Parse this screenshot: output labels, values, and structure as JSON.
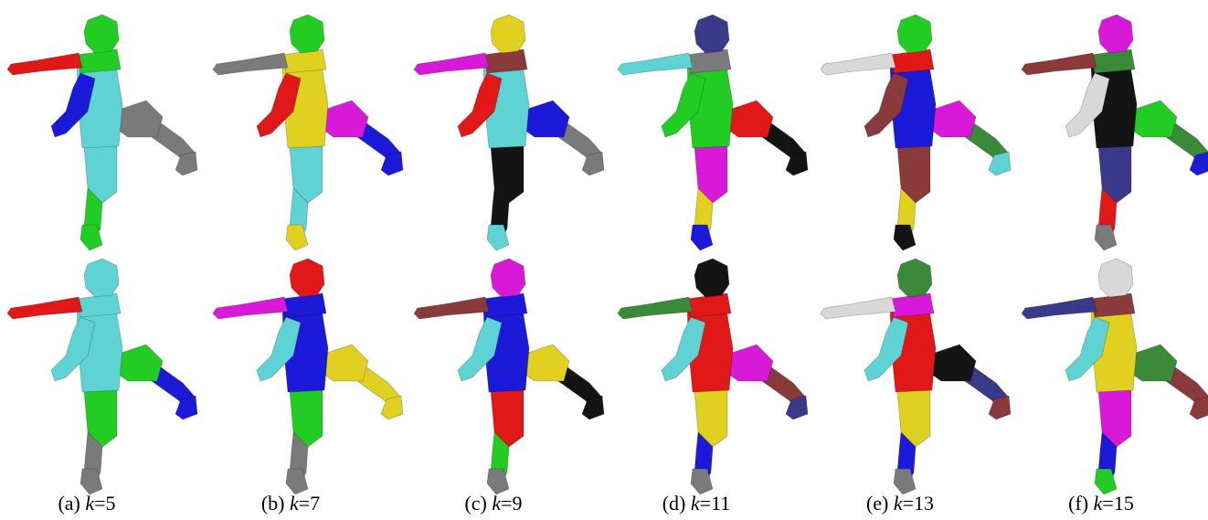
{
  "figure": {
    "captions": [
      {
        "label": "(a)",
        "var": "k",
        "value": "=5"
      },
      {
        "label": "(b)",
        "var": "k",
        "value": "=7"
      },
      {
        "label": "(c)",
        "var": "k",
        "value": "=9"
      },
      {
        "label": "(d)",
        "var": "k",
        "value": "=11"
      },
      {
        "label": "(e)",
        "var": "k",
        "value": "=13"
      },
      {
        "label": "(f)",
        "var": "k",
        "value": "=15"
      }
    ],
    "palette": {
      "green": "#22cc22",
      "red": "#e01818",
      "blue": "#1a1ad8",
      "cyan": "#5fd3d3",
      "gray": "#7a7a7a",
      "yellow": "#e0d020",
      "magenta": "#d81ad8",
      "black": "#141414",
      "brown": "#8a3a3a",
      "darkblue": "#3a3a8a",
      "darkgreen": "#3a8a3a",
      "white": "#d8d8d8"
    },
    "segmentations": {
      "top": [
        {
          "head": "green",
          "torso": "cyan",
          "arm_l": "red",
          "arm_r": "blue",
          "leg_swing": "gray",
          "shin_swing": "gray",
          "thigh_stand": "cyan",
          "shin_stand": "green",
          "foot_swing": "gray",
          "foot_stand": "green",
          "shoulder": "green"
        },
        {
          "head": "green",
          "torso": "yellow",
          "arm_l": "gray",
          "arm_r": "red",
          "leg_swing": "magenta",
          "shin_swing": "blue",
          "thigh_stand": "cyan",
          "shin_stand": "cyan",
          "foot_swing": "blue",
          "foot_stand": "yellow",
          "shoulder": "yellow"
        },
        {
          "head": "yellow",
          "torso": "cyan",
          "arm_l": "magenta",
          "arm_r": "red",
          "leg_swing": "blue",
          "shin_swing": "gray",
          "thigh_stand": "black",
          "shin_stand": "black",
          "foot_swing": "gray",
          "foot_stand": "cyan",
          "shoulder": "brown"
        },
        {
          "head": "darkblue",
          "torso": "green",
          "arm_l": "cyan",
          "arm_r": "green",
          "leg_swing": "red",
          "shin_swing": "black",
          "thigh_stand": "magenta",
          "shin_stand": "yellow",
          "foot_swing": "black",
          "foot_stand": "blue",
          "shoulder": "gray"
        },
        {
          "head": "green",
          "torso": "blue",
          "arm_l": "white",
          "arm_r": "brown",
          "leg_swing": "magenta",
          "shin_swing": "darkgreen",
          "thigh_stand": "brown",
          "shin_stand": "yellow",
          "foot_swing": "cyan",
          "foot_stand": "black",
          "shoulder": "red"
        },
        {
          "head": "magenta",
          "torso": "black",
          "arm_l": "brown",
          "arm_r": "white",
          "leg_swing": "green",
          "shin_swing": "darkgreen",
          "thigh_stand": "darkblue",
          "shin_stand": "red",
          "foot_swing": "blue",
          "foot_stand": "gray",
          "shoulder": "darkgreen"
        }
      ],
      "bottom": [
        {
          "head": "cyan",
          "torso": "cyan",
          "arm_l": "red",
          "arm_r": "cyan",
          "leg_swing": "green",
          "shin_swing": "blue",
          "thigh_stand": "green",
          "shin_stand": "gray",
          "foot_swing": "blue",
          "foot_stand": "gray",
          "shoulder": "cyan"
        },
        {
          "head": "red",
          "torso": "blue",
          "arm_l": "magenta",
          "arm_r": "cyan",
          "leg_swing": "yellow",
          "shin_swing": "yellow",
          "thigh_stand": "green",
          "shin_stand": "gray",
          "foot_swing": "yellow",
          "foot_stand": "gray",
          "shoulder": "blue"
        },
        {
          "head": "magenta",
          "torso": "blue",
          "arm_l": "brown",
          "arm_r": "cyan",
          "leg_swing": "yellow",
          "shin_swing": "black",
          "thigh_stand": "red",
          "shin_stand": "green",
          "foot_swing": "black",
          "foot_stand": "gray",
          "shoulder": "blue"
        },
        {
          "head": "black",
          "torso": "red",
          "arm_l": "darkgreen",
          "arm_r": "cyan",
          "leg_swing": "magenta",
          "shin_swing": "brown",
          "thigh_stand": "yellow",
          "shin_stand": "blue",
          "foot_swing": "darkblue",
          "foot_stand": "gray",
          "shoulder": "red"
        },
        {
          "head": "darkgreen",
          "torso": "red",
          "arm_l": "white",
          "arm_r": "cyan",
          "leg_swing": "black",
          "shin_swing": "darkblue",
          "thigh_stand": "yellow",
          "shin_stand": "blue",
          "foot_swing": "brown",
          "foot_stand": "gray",
          "shoulder": "magenta"
        },
        {
          "head": "white",
          "torso": "yellow",
          "arm_l": "darkblue",
          "arm_r": "cyan",
          "leg_swing": "darkgreen",
          "shin_swing": "brown",
          "thigh_stand": "magenta",
          "shin_stand": "blue",
          "foot_swing": "brown",
          "foot_stand": "green",
          "shoulder": "brown"
        }
      ]
    }
  }
}
